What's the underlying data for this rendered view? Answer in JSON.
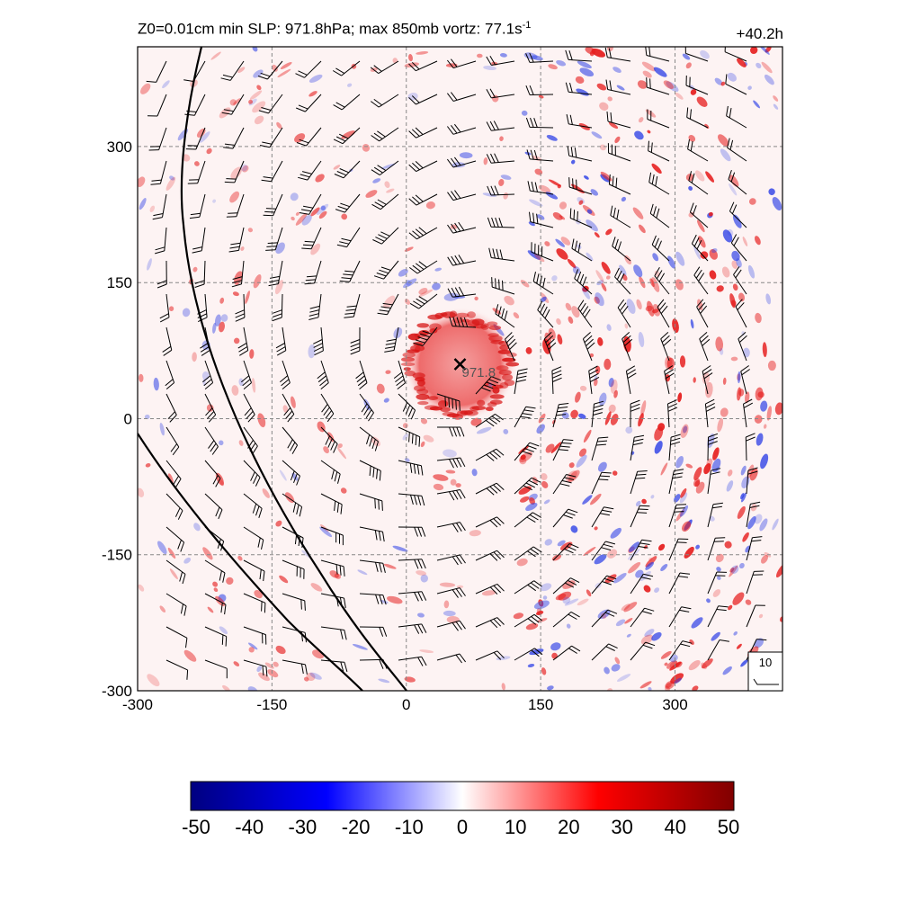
{
  "header": {
    "title_text": "Z0=0.01cm  min SLP: 971.8hPa; max 850mb vortz:  77.1s",
    "title_superscript": "-1",
    "time_label": "+40.2h"
  },
  "chart_data": {
    "type": "heatmap",
    "field": "850mb relative vorticity with wind barbs",
    "x_ticks": [
      "-300",
      "-150",
      "0",
      "150",
      "300"
    ],
    "y_ticks": [
      "-300",
      "-150",
      "0",
      "150",
      "300"
    ],
    "xlim": [
      -300,
      420
    ],
    "ylim": [
      -300,
      410
    ],
    "grid": true,
    "center": {
      "x": 60,
      "y": 60,
      "label": "971.8",
      "marker": "x"
    },
    "eye_wall_radius": 50,
    "reference_barb_label": "10",
    "colorbar": {
      "ticks": [
        "-50",
        "-40",
        "-30",
        "-20",
        "-10",
        "0",
        "10",
        "20",
        "30",
        "40",
        "50"
      ],
      "range": [
        -50,
        50
      ],
      "colors": [
        "#000080",
        "#0000ff",
        "#ffffff",
        "#ff0000",
        "#800000"
      ]
    },
    "coast_lines": 2
  }
}
